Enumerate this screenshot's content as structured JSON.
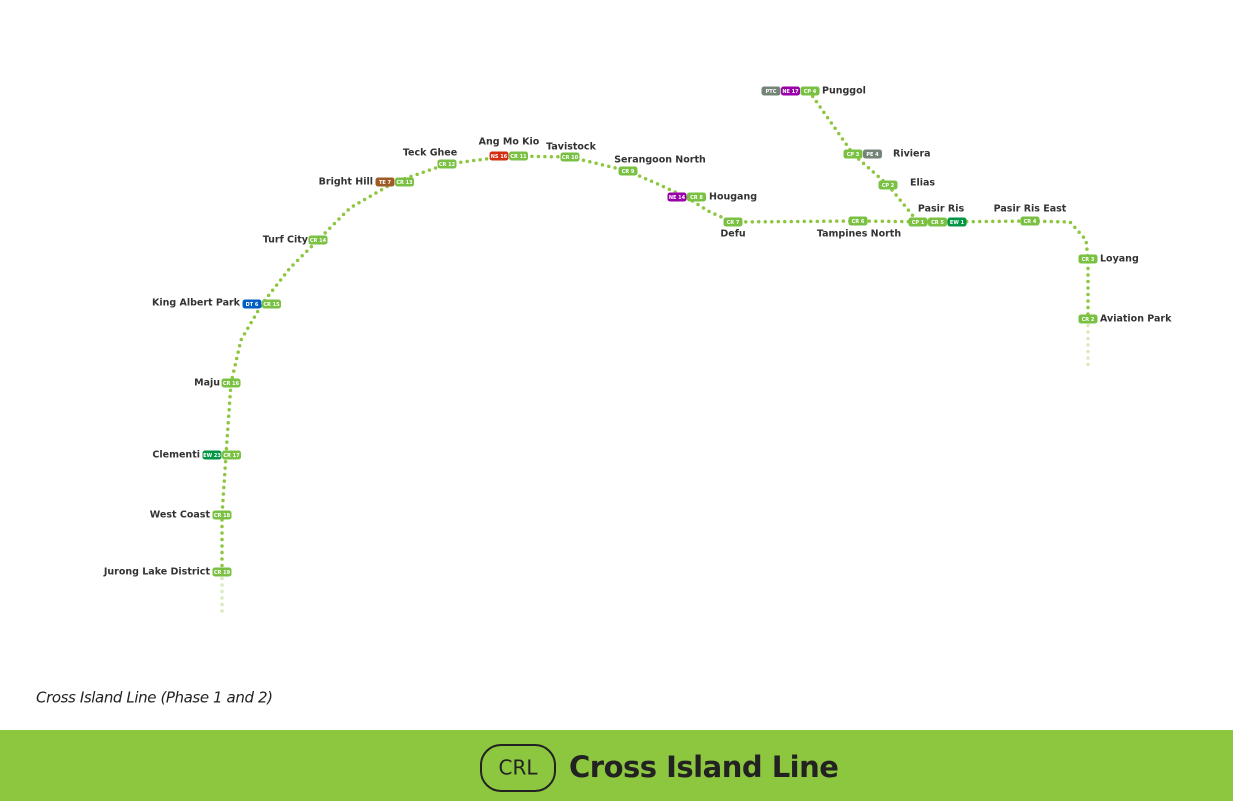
{
  "map": {
    "stations": [
      {
        "name": "Jurong Lake District",
        "codes": [
          {
            "code": "CR 19",
            "color": "#7ac143"
          }
        ]
      },
      {
        "name": "West Coast",
        "codes": [
          {
            "code": "CR 18",
            "color": "#7ac143"
          }
        ]
      },
      {
        "name": "Clementi",
        "codes": [
          {
            "code": "EW 23",
            "color": "#009645"
          },
          {
            "code": "CR 17",
            "color": "#7ac143"
          }
        ]
      },
      {
        "name": "Maju",
        "codes": [
          {
            "code": "CR 16",
            "color": "#7ac143"
          }
        ]
      },
      {
        "name": "King Albert Park",
        "codes": [
          {
            "code": "DT 6",
            "color": "#005ec4"
          },
          {
            "code": "CR 15",
            "color": "#7ac143"
          }
        ]
      },
      {
        "name": "Turf City",
        "codes": [
          {
            "code": "CR 14",
            "color": "#7ac143"
          }
        ]
      },
      {
        "name": "Bright Hill",
        "codes": [
          {
            "code": "TE 7",
            "color": "#9d5b25"
          },
          {
            "code": "CR 13",
            "color": "#7ac143"
          }
        ]
      },
      {
        "name": "Teck Ghee",
        "codes": [
          {
            "code": "CR 12",
            "color": "#7ac143"
          }
        ]
      },
      {
        "name": "Ang Mo Kio",
        "codes": [
          {
            "code": "NS 16",
            "color": "#d42e12"
          },
          {
            "code": "CR 11",
            "color": "#7ac143"
          }
        ]
      },
      {
        "name": "Tavistock",
        "codes": [
          {
            "code": "CR 10",
            "color": "#7ac143"
          }
        ]
      },
      {
        "name": "Serangoon North",
        "codes": [
          {
            "code": "CR 9",
            "color": "#7ac143"
          }
        ]
      },
      {
        "name": "Hougang",
        "codes": [
          {
            "code": "NE 14",
            "color": "#9900aa"
          },
          {
            "code": "CR 8",
            "color": "#7ac143"
          }
        ]
      },
      {
        "name": "Defu",
        "codes": [
          {
            "code": "CR 7",
            "color": "#7ac143"
          }
        ]
      },
      {
        "name": "Tampines North",
        "codes": [
          {
            "code": "CR 6",
            "color": "#7ac143"
          }
        ]
      },
      {
        "name": "Pasir Ris",
        "codes": [
          {
            "code": "CP 1",
            "color": "#7ac143"
          },
          {
            "code": "CR 5",
            "color": "#7ac143"
          },
          {
            "code": "EW 1",
            "color": "#009645"
          }
        ]
      },
      {
        "name": "Pasir Ris East",
        "codes": [
          {
            "code": "CR 4",
            "color": "#7ac143"
          }
        ]
      },
      {
        "name": "Loyang",
        "codes": [
          {
            "code": "CR 3",
            "color": "#7ac143"
          }
        ]
      },
      {
        "name": "Aviation Park",
        "codes": [
          {
            "code": "CR 2",
            "color": "#7ac143"
          }
        ]
      },
      {
        "name": "Elias",
        "codes": [
          {
            "code": "CP 2",
            "color": "#7ac143"
          }
        ]
      },
      {
        "name": "Riviera",
        "codes": [
          {
            "code": "CP 3",
            "color": "#7ac143"
          },
          {
            "code": "PE 4",
            "color": "#748477"
          }
        ]
      },
      {
        "name": "Punggol",
        "codes": [
          {
            "code": "PTC",
            "color": "#748477"
          },
          {
            "code": "NE 17",
            "color": "#9900aa"
          },
          {
            "code": "CP 4",
            "color": "#7ac143"
          }
        ]
      }
    ],
    "caption": "Cross Island Line (Phase 1 and 2)",
    "footer": {
      "badge": "CRL",
      "title": "Cross Island Line"
    }
  }
}
